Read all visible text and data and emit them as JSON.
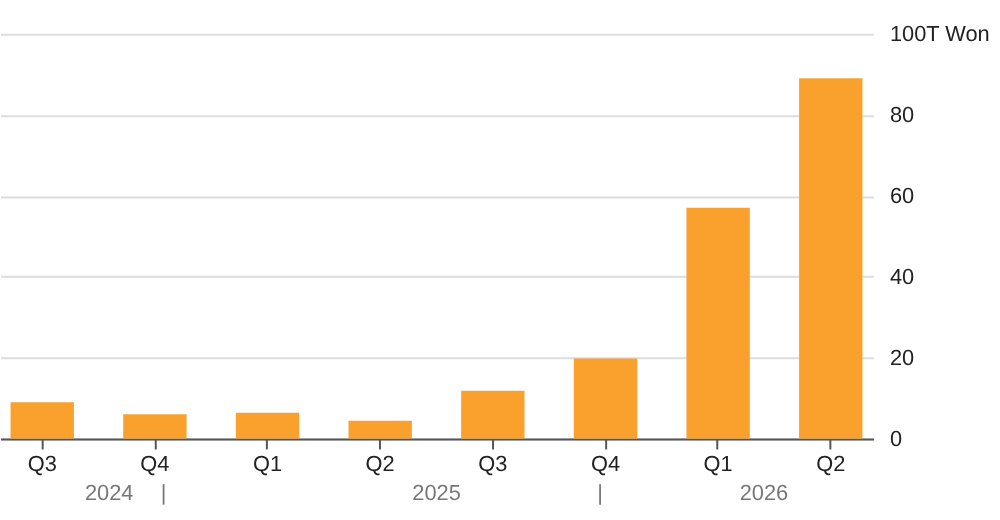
{
  "chart_data": {
    "type": "bar",
    "categories": [
      "Q3",
      "Q4",
      "Q1",
      "Q2",
      "Q3",
      "Q4",
      "Q1",
      "Q2"
    ],
    "values": [
      9,
      6,
      6.4,
      4.4,
      11.8,
      19.8,
      57,
      89
    ],
    "color": "#f9a12c",
    "ylim": [
      0,
      100
    ],
    "yticks": [
      0,
      20,
      40,
      60,
      80,
      {
        "value": 100,
        "label": "100T Won"
      }
    ],
    "grid": "y",
    "annotations": [
      "2024",
      "|",
      "2025",
      "|",
      "2026"
    ]
  }
}
